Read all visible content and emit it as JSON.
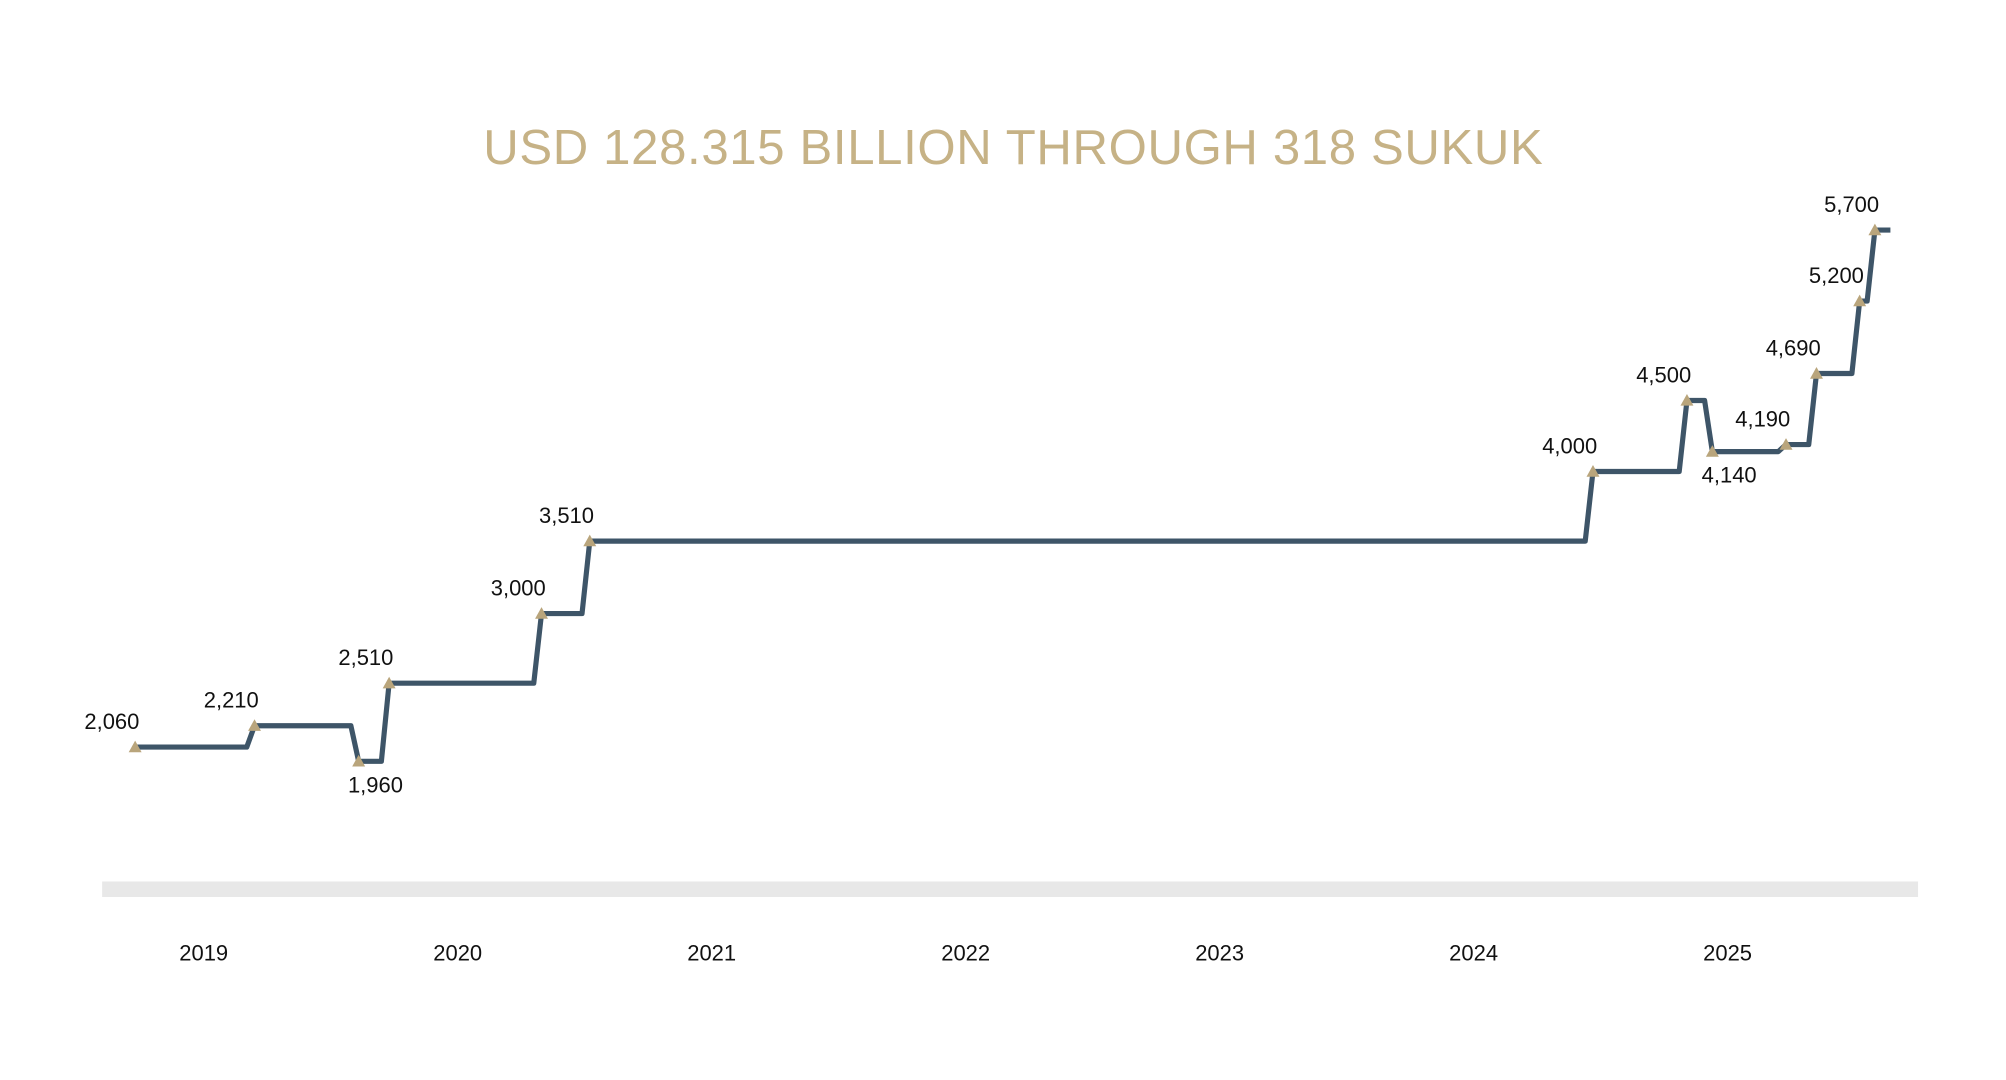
{
  "chart_data": {
    "type": "step",
    "title": "USD 128.315 BILLION THROUGH 318 SUKUK",
    "x": [
      2018.73,
      2019.2,
      2019.61,
      2019.73,
      2020.33,
      2020.52,
      2024.47,
      2024.84,
      2024.94,
      2025.23,
      2025.35,
      2025.52,
      2025.58
    ],
    "values": [
      2060,
      2210,
      1960,
      2510,
      3000,
      3510,
      4000,
      4500,
      4140,
      4190,
      4690,
      5200,
      5700
    ],
    "value_labels": [
      "2,060",
      "2,210",
      "1,960",
      "2,510",
      "3,000",
      "3,510",
      "4,000",
      "4,500",
      "4,140",
      "4,190",
      "4,690",
      "5,200",
      "5,700"
    ],
    "color": "#3e5568",
    "marker_color": "#b9a57c",
    "xlim": [
      2018.6,
      2025.75
    ],
    "xticks": [
      2019,
      2020,
      2021,
      2022,
      2023,
      2024,
      2025
    ]
  }
}
